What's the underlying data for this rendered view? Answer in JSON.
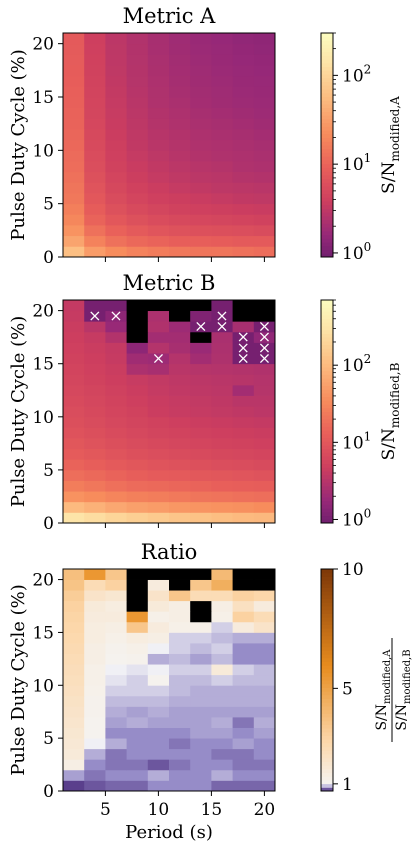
{
  "chart_data": [
    {
      "type": "heatmap",
      "title": "Metric A",
      "ylabel": "Pulse Duty Cycle (%)",
      "xlabel": "",
      "xlim": [
        1,
        21
      ],
      "ylim": [
        0,
        21
      ],
      "x_ticks": [
        5,
        10,
        15,
        20
      ],
      "x_tick_labels": [],
      "y_ticks": [
        0,
        5,
        10,
        15,
        20
      ],
      "y_tick_labels": [
        "0",
        "5",
        "10",
        "15",
        "20"
      ],
      "colorbar": {
        "label_main": "S/N",
        "label_sub": "modified,A",
        "scale": "log",
        "vmin": 0.9,
        "vmax": 300,
        "ticks": [
          {
            "value": 1,
            "base": "10",
            "exp": "0"
          },
          {
            "value": 10,
            "base": "10",
            "exp": "1"
          },
          {
            "value": 100,
            "base": "10",
            "exp": "2"
          }
        ]
      },
      "colormap": "magma-inferno",
      "grid": {
        "cols": 10,
        "x0": 1,
        "dx": 2,
        "y0": 0,
        "dy": 1,
        "row_order": "bottom-to-top",
        "values": [
          [
            60,
            30,
            22,
            18,
            16,
            15,
            14,
            14,
            13,
            12
          ],
          [
            35,
            18,
            13,
            11,
            10,
            9,
            9,
            8.5,
            8,
            8
          ],
          [
            25,
            13,
            9.5,
            8,
            7,
            6.5,
            6.2,
            6,
            5.8,
            5.5
          ],
          [
            20,
            10,
            7.5,
            6.3,
            5.6,
            5.2,
            4.9,
            4.7,
            4.5,
            4.3
          ],
          [
            17,
            8.5,
            6.3,
            5.3,
            4.7,
            4.3,
            4.1,
            3.9,
            3.7,
            3.6
          ],
          [
            15,
            7.5,
            5.5,
            4.6,
            4.1,
            3.8,
            3.6,
            3.4,
            3.2,
            3.1
          ],
          [
            14,
            6.8,
            5,
            4.2,
            3.7,
            3.4,
            3.2,
            3,
            2.9,
            2.8
          ],
          [
            13,
            6.3,
            4.6,
            3.8,
            3.4,
            3.1,
            2.9,
            2.8,
            2.6,
            2.5
          ],
          [
            12,
            5.9,
            4.3,
            3.6,
            3.2,
            2.9,
            2.7,
            2.6,
            2.4,
            2.3
          ],
          [
            11.5,
            5.6,
            4.1,
            3.4,
            3,
            2.7,
            2.5,
            2.4,
            2.3,
            2.2
          ],
          [
            11,
            5.3,
            3.9,
            3.2,
            2.8,
            2.6,
            2.4,
            2.3,
            2.2,
            2.1
          ],
          [
            10.5,
            5.1,
            3.7,
            3.1,
            2.7,
            2.5,
            2.3,
            2.2,
            2.1,
            2
          ],
          [
            10,
            4.9,
            3.6,
            3,
            2.6,
            2.4,
            2.2,
            2.1,
            2,
            1.9
          ],
          [
            9.7,
            4.7,
            3.5,
            2.9,
            2.5,
            2.3,
            2.1,
            2,
            1.9,
            1.8
          ],
          [
            9.4,
            4.6,
            3.4,
            2.8,
            2.4,
            2.2,
            2,
            1.9,
            1.8,
            1.75
          ],
          [
            9.1,
            4.5,
            3.3,
            2.7,
            2.35,
            2.1,
            1.95,
            1.85,
            1.75,
            1.7
          ],
          [
            8.8,
            4.4,
            3.2,
            2.65,
            2.3,
            2.05,
            1.9,
            1.8,
            1.7,
            1.65
          ],
          [
            8.6,
            4.3,
            3.1,
            2.6,
            2.25,
            2,
            1.85,
            1.75,
            1.65,
            1.6
          ],
          [
            8.4,
            4.2,
            3.05,
            2.55,
            2.2,
            1.95,
            1.8,
            1.7,
            1.6,
            1.55
          ],
          [
            8.2,
            4.1,
            3,
            2.5,
            2.15,
            1.9,
            1.75,
            1.65,
            1.55,
            1.5
          ],
          [
            8,
            4,
            2.95,
            2.45,
            2.1,
            1.85,
            1.7,
            1.6,
            1.5,
            1.45
          ]
        ]
      }
    },
    {
      "type": "heatmap",
      "title": "Metric B",
      "ylabel": "Pulse Duty Cycle (%)",
      "xlabel": "",
      "xlim": [
        1,
        21
      ],
      "ylim": [
        0,
        21
      ],
      "x_ticks": [
        5,
        10,
        15,
        20
      ],
      "x_tick_labels": [],
      "y_ticks": [
        0,
        5,
        10,
        15,
        20
      ],
      "y_tick_labels": [
        "0",
        "5",
        "10",
        "15",
        "20"
      ],
      "colorbar": {
        "label_main": "S/N",
        "label_sub": "modified,B",
        "scale": "log",
        "vmin": 0.9,
        "vmax": 700,
        "ticks": [
          {
            "value": 1,
            "base": "10",
            "exp": "0"
          },
          {
            "value": 10,
            "base": "10",
            "exp": "1"
          },
          {
            "value": 100,
            "base": "10",
            "exp": "2"
          }
        ]
      },
      "colormap": "magma-inferno",
      "grid": {
        "cols": 10,
        "x0": 1,
        "dx": 2,
        "y0": 0,
        "dy": 1,
        "row_order": "bottom-to-top",
        "values": [
          [
            300,
            250,
            200,
            170,
            150,
            130,
            120,
            110,
            100,
            95
          ],
          [
            100,
            80,
            65,
            55,
            50,
            45,
            42,
            40,
            38,
            35
          ],
          [
            40,
            35,
            30,
            27,
            25,
            23,
            21,
            20,
            19,
            18
          ],
          [
            25,
            22,
            19,
            17,
            16,
            15,
            14,
            13,
            12.5,
            12
          ],
          [
            18,
            16,
            14,
            12.5,
            11.5,
            11,
            10.5,
            10,
            9.5,
            9
          ],
          [
            14,
            12.5,
            11,
            10,
            9.2,
            8.7,
            8.2,
            7.8,
            7.4,
            7
          ],
          [
            11.5,
            10.3,
            9.2,
            8.3,
            7.7,
            7.2,
            6.8,
            6.5,
            6.2,
            5.9
          ],
          [
            10,
            9,
            8,
            7.2,
            6.6,
            6.2,
            5.9,
            5.6,
            5.3,
            5.1
          ],
          [
            8.8,
            8,
            7.1,
            6.4,
            5.8,
            5.5,
            5.2,
            4.9,
            4.7,
            4.5
          ],
          [
            8,
            7.2,
            6.4,
            5.8,
            5.3,
            4.9,
            4.6,
            4.4,
            4.2,
            4
          ],
          [
            7.4,
            6.6,
            5.9,
            5.3,
            4.6,
            4.3,
            4.1,
            3.9,
            3.7,
            3.5
          ],
          [
            6.9,
            6.2,
            5.5,
            4.9,
            4.4,
            4.1,
            3.9,
            3.7,
            3.3,
            3.3
          ],
          [
            6.4,
            5.8,
            5.2,
            4.6,
            4.1,
            3.8,
            3.6,
            3.5,
            2.2,
            3.1
          ],
          [
            6,
            5.4,
            4.8,
            4.3,
            3.9,
            3.6,
            3.4,
            3.3,
            3.2,
            3
          ],
          [
            5.7,
            5.1,
            4.5,
            2.6,
            2.4,
            3.3,
            3.1,
            3,
            2.9,
            2.8
          ],
          [
            5.4,
            4.8,
            4.2,
            2.1,
            2,
            3,
            2.2,
            2.7,
            1,
            1
          ],
          [
            5.1,
            4.5,
            4,
            1.5,
            3,
            2.4,
            1.9,
            2.6,
            1,
            1
          ],
          [
            4.8,
            4.2,
            2.9,
            "nan",
            2.2,
            2.2,
            "nan",
            2.5,
            1,
            1.6
          ],
          [
            4.5,
            3.3,
            1.8,
            "nan",
            2.8,
            2,
            1,
            1,
            2.4,
            1
          ],
          [
            4.2,
            1,
            1.5,
            "nan",
            2.6,
            "nan",
            1.2,
            1,
            "nan",
            "nan"
          ],
          [
            4,
            1,
            1,
            "nan",
            "nan",
            "nan",
            "nan",
            1,
            "nan",
            "nan"
          ]
        ]
      },
      "markers": {
        "symbol": "×",
        "cells": [
          [
            1,
            19
          ],
          [
            2,
            19
          ],
          [
            4,
            15
          ],
          [
            7,
            19
          ],
          [
            7,
            18
          ],
          [
            6,
            18
          ],
          [
            8,
            16
          ],
          [
            8,
            15
          ],
          [
            9,
            16
          ],
          [
            9,
            15
          ],
          [
            9,
            18
          ],
          [
            8,
            17
          ],
          [
            9,
            17
          ]
        ]
      }
    },
    {
      "type": "heatmap",
      "title": "Ratio",
      "ylabel": "Pulse Duty Cycle (%)",
      "xlabel": "Period (s)",
      "xlim": [
        1,
        21
      ],
      "ylim": [
        0,
        21
      ],
      "x_ticks": [
        5,
        10,
        15,
        20
      ],
      "x_tick_labels": [
        "5",
        "10",
        "15",
        "20"
      ],
      "y_ticks": [
        0,
        5,
        10,
        15,
        20
      ],
      "y_tick_labels": [
        "0",
        "5",
        "10",
        "15",
        "20"
      ],
      "colorbar": {
        "label_num_main": "S/N",
        "label_num_sub": "modified,A",
        "label_den_main": "S/N",
        "label_den_sub": "modified,B",
        "scale": "two-slope",
        "vmin": 0.7,
        "vcenter": 1,
        "vmax": 10,
        "ticks": [
          {
            "value": 1,
            "label": "1"
          },
          {
            "value": 5,
            "label": "5"
          },
          {
            "value": 10,
            "label": "10"
          }
        ]
      },
      "colormap": "purple-orange",
      "grid": {
        "cols": 10,
        "x0": 1,
        "dx": 2,
        "y0": 0,
        "dy": 1,
        "row_order": "bottom-to-top",
        "values": [
          [
            0.75,
            0.78,
            0.8,
            0.8,
            0.85,
            0.85,
            0.85,
            0.8,
            0.8,
            0.8
          ],
          [
            0.88,
            0.82,
            0.85,
            0.85,
            0.9,
            0.85,
            0.85,
            0.9,
            0.85,
            0.85
          ],
          [
            1.3,
            0.85,
            0.82,
            0.82,
            0.78,
            0.82,
            0.85,
            0.85,
            0.82,
            0.82
          ],
          [
            1.6,
            0.9,
            0.82,
            0.85,
            0.85,
            0.85,
            0.85,
            0.82,
            0.82,
            0.85
          ],
          [
            1.7,
            1,
            0.9,
            0.85,
            0.85,
            0.82,
            0.85,
            0.85,
            0.88,
            0.85
          ],
          [
            1.8,
            1.05,
            0.85,
            0.85,
            0.85,
            0.85,
            0.88,
            0.88,
            0.85,
            0.88
          ],
          [
            1.9,
            1.05,
            0.88,
            0.9,
            0.88,
            0.88,
            0.88,
            0.9,
            0.82,
            0.9
          ],
          [
            2,
            1.1,
            0.9,
            0.88,
            0.9,
            0.88,
            0.88,
            0.88,
            0.88,
            0.88
          ],
          [
            2.1,
            1.1,
            0.92,
            0.92,
            0.92,
            0.9,
            0.9,
            0.9,
            0.9,
            0.9
          ],
          [
            2.2,
            1.15,
            0.95,
            0.95,
            0.95,
            0.92,
            0.9,
            0.9,
            0.9,
            0.9
          ],
          [
            2.3,
            1.2,
            0.98,
            0.95,
            1.05,
            0.92,
            0.92,
            0.95,
            0.92,
            0.92
          ],
          [
            2.4,
            1.2,
            1,
            0.98,
            1,
            0.95,
            0.95,
            1.6,
            0.95,
            0.92
          ],
          [
            2.5,
            1.3,
            1.05,
            1.1,
            0.9,
            0.92,
            0.88,
            0.92,
            0.85,
            0.85
          ],
          [
            2.6,
            1.3,
            1.1,
            1.2,
            1,
            0.95,
            0.92,
            0.95,
            0.85,
            0.85
          ],
          [
            2.7,
            1.4,
            1.2,
            1.4,
            1.3,
            0.95,
            0.95,
            0.92,
            0.9,
            0.9
          ],
          [
            2.8,
            1.4,
            1.3,
            3.5,
            1.5,
            1.2,
            1.2,
            0.95,
            1.5,
            2
          ],
          [
            2.9,
            1.5,
            1.5,
            5.5,
            1.2,
            1.3,
            "nan",
            1.2,
            3,
            2.5
          ],
          [
            3,
            1.6,
            1.4,
            "nan",
            1.6,
            1.3,
            "nan",
            1.3,
            2.2,
            1.5
          ],
          [
            3.2,
            2,
            1.8,
            "nan",
            2,
            3.5,
            2.5,
            2.5,
            3,
            2.8
          ],
          [
            3.6,
            2.5,
            3,
            "nan",
            1.5,
            "nan",
            3.5,
            4.5,
            "nan",
            "nan"
          ],
          [
            3.8,
            5.5,
            3.5,
            "nan",
            "nan",
            "nan",
            "nan",
            4,
            "nan",
            "nan"
          ]
        ]
      }
    }
  ]
}
